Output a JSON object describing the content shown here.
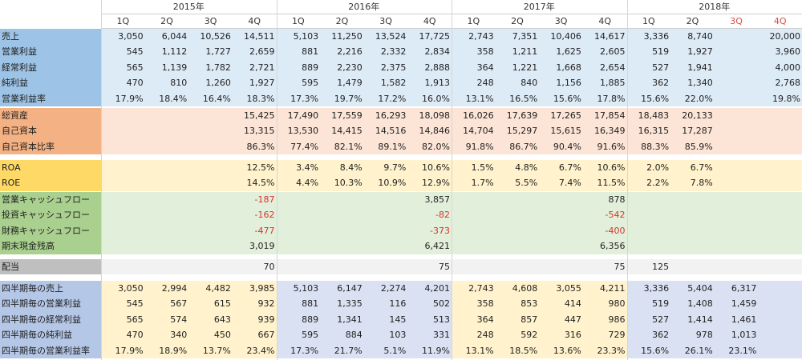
{
  "colors": {
    "label_blue": "#9dc3e6",
    "label_orange": "#f4b183",
    "label_yellow": "#ffd966",
    "label_green": "#a9d08e",
    "label_gray": "#bfbfbf",
    "label_periwinkle": "#b4c7e7",
    "data_blue": "#ddebf7",
    "data_peach": "#fce4d6",
    "data_yellow": "#fff2cc",
    "data_green": "#e2efda",
    "data_gray": "#f2f2f2",
    "data_lavender": "#dae1f3",
    "negative": "#d9342b",
    "header_forecast": "#e04a3f"
  },
  "years": [
    "2015年",
    "2016年",
    "2017年",
    "2018年"
  ],
  "quarters": [
    {
      "label": "1Q",
      "forecast": false
    },
    {
      "label": "2Q",
      "forecast": false
    },
    {
      "label": "3Q",
      "forecast": false
    },
    {
      "label": "4Q",
      "forecast": false
    },
    {
      "label": "1Q",
      "forecast": false
    },
    {
      "label": "2Q",
      "forecast": false
    },
    {
      "label": "3Q",
      "forecast": false
    },
    {
      "label": "4Q",
      "forecast": false
    },
    {
      "label": "1Q",
      "forecast": false
    },
    {
      "label": "2Q",
      "forecast": false
    },
    {
      "label": "3Q",
      "forecast": false
    },
    {
      "label": "4Q",
      "forecast": false
    },
    {
      "label": "1Q",
      "forecast": false
    },
    {
      "label": "2Q",
      "forecast": false
    },
    {
      "label": "3Q",
      "forecast": true
    },
    {
      "label": "4Q",
      "forecast": true
    }
  ],
  "sections": [
    {
      "id": "earnings",
      "label_color": "label_blue",
      "fill": "uniform",
      "data_color": "data_blue",
      "rows": [
        {
          "label": "売上",
          "values": [
            "3,050",
            "6,044",
            "10,526",
            "14,511",
            "5,103",
            "11,250",
            "13,524",
            "17,725",
            "2,743",
            "7,351",
            "10,406",
            "14,617",
            "3,336",
            "8,740",
            "",
            "20,000"
          ]
        },
        {
          "label": "営業利益",
          "values": [
            "545",
            "1,112",
            "1,727",
            "2,659",
            "881",
            "2,216",
            "2,332",
            "2,834",
            "358",
            "1,211",
            "1,625",
            "2,605",
            "519",
            "1,927",
            "",
            "3,960"
          ]
        },
        {
          "label": "経常利益",
          "values": [
            "565",
            "1,139",
            "1,782",
            "2,721",
            "889",
            "2,230",
            "2,375",
            "2,888",
            "364",
            "1,221",
            "1,668",
            "2,654",
            "527",
            "1,941",
            "",
            "4,000"
          ]
        },
        {
          "label": "純利益",
          "values": [
            "470",
            "810",
            "1,260",
            "1,927",
            "595",
            "1,479",
            "1,582",
            "1,913",
            "248",
            "840",
            "1,156",
            "1,885",
            "362",
            "1,340",
            "",
            "2,768"
          ]
        },
        {
          "label": "営業利益率",
          "values": [
            "17.9%",
            "18.4%",
            "16.4%",
            "18.3%",
            "17.3%",
            "19.7%",
            "17.2%",
            "16.0%",
            "13.1%",
            "16.5%",
            "15.6%",
            "17.8%",
            "15.6%",
            "22.0%",
            "",
            "19.8%"
          ]
        }
      ]
    },
    {
      "id": "balance",
      "label_color": "label_orange",
      "fill": "uniform",
      "data_color": "data_peach",
      "rows": [
        {
          "label": "総資産",
          "values": [
            "",
            "",
            "",
            "15,425",
            "17,490",
            "17,559",
            "16,293",
            "18,098",
            "16,026",
            "17,639",
            "17,265",
            "17,854",
            "18,483",
            "20,133",
            "",
            ""
          ]
        },
        {
          "label": "自己資本",
          "values": [
            "",
            "",
            "",
            "13,315",
            "13,530",
            "14,415",
            "14,516",
            "14,846",
            "14,704",
            "15,297",
            "15,615",
            "16,349",
            "16,315",
            "17,287",
            "",
            ""
          ]
        },
        {
          "label": "自己資本比率",
          "values": [
            "",
            "",
            "",
            "86.3%",
            "77.4%",
            "82.1%",
            "89.1%",
            "82.0%",
            "91.8%",
            "86.7%",
            "90.4%",
            "91.6%",
            "88.3%",
            "85.9%",
            "",
            ""
          ]
        }
      ]
    },
    {
      "id": "returns",
      "label_color": "label_yellow",
      "fill": "uniform",
      "data_color": "data_yellow",
      "rows": [
        {
          "label": "ROA",
          "values": [
            "",
            "",
            "",
            "12.5%",
            "3.4%",
            "8.4%",
            "9.7%",
            "10.6%",
            "1.5%",
            "4.8%",
            "6.7%",
            "10.6%",
            "2.0%",
            "6.7%",
            "",
            ""
          ]
        },
        {
          "label": "ROE",
          "values": [
            "",
            "",
            "",
            "14.5%",
            "4.4%",
            "10.3%",
            "10.9%",
            "12.9%",
            "1.7%",
            "5.5%",
            "7.4%",
            "11.5%",
            "2.2%",
            "7.8%",
            "",
            ""
          ]
        }
      ]
    },
    {
      "id": "cashflow",
      "label_color": "label_green",
      "fill": "uniform",
      "data_color": "data_green",
      "rows": [
        {
          "label": "営業キャッシュフロー",
          "values": [
            "",
            "",
            "",
            "-187",
            "",
            "",
            "",
            "3,857",
            "",
            "",
            "",
            "878",
            "",
            "",
            "",
            ""
          ]
        },
        {
          "label": "投資キャッシュフロー",
          "values": [
            "",
            "",
            "",
            "-162",
            "",
            "",
            "",
            "-82",
            "",
            "",
            "",
            "-542",
            "",
            "",
            "",
            ""
          ]
        },
        {
          "label": "財務キャッシュフロー",
          "values": [
            "",
            "",
            "",
            "-477",
            "",
            "",
            "",
            "-373",
            "",
            "",
            "",
            "-400",
            "",
            "",
            "",
            ""
          ]
        },
        {
          "label": "期末現金残高",
          "values": [
            "",
            "",
            "",
            "3,019",
            "",
            "",
            "",
            "6,421",
            "",
            "",
            "",
            "6,356",
            "",
            "",
            "",
            ""
          ]
        }
      ]
    },
    {
      "id": "dividend",
      "label_color": "label_gray",
      "fill": "uniform",
      "data_color": "data_gray",
      "rows": [
        {
          "label": "配当",
          "values": [
            "",
            "",
            "",
            "70",
            "",
            "",
            "",
            "75",
            "",
            "",
            "",
            "75",
            "125",
            "",
            "",
            ""
          ]
        }
      ]
    },
    {
      "id": "quarterly",
      "label_color": "label_periwinkle",
      "fill": "by_year",
      "year_colors": [
        "data_yellow",
        "data_lavender",
        "data_yellow",
        "data_lavender"
      ],
      "rows": [
        {
          "label": "四半期毎の売上",
          "values": [
            "3,050",
            "2,994",
            "4,482",
            "3,985",
            "5,103",
            "6,147",
            "2,274",
            "4,201",
            "2,743",
            "4,608",
            "3,055",
            "4,211",
            "3,336",
            "5,404",
            "6,317",
            ""
          ]
        },
        {
          "label": "四半期毎の営業利益",
          "values": [
            "545",
            "567",
            "615",
            "932",
            "881",
            "1,335",
            "116",
            "502",
            "358",
            "853",
            "414",
            "980",
            "519",
            "1,408",
            "1,459",
            ""
          ]
        },
        {
          "label": "四半期毎の経常利益",
          "values": [
            "565",
            "574",
            "643",
            "939",
            "889",
            "1,341",
            "145",
            "513",
            "364",
            "857",
            "447",
            "986",
            "527",
            "1,414",
            "1,461",
            ""
          ]
        },
        {
          "label": "四半期毎の純利益",
          "values": [
            "470",
            "340",
            "450",
            "667",
            "595",
            "884",
            "103",
            "331",
            "248",
            "592",
            "316",
            "729",
            "362",
            "978",
            "1,013",
            ""
          ]
        },
        {
          "label": "四半期毎の営業利益率",
          "values": [
            "17.9%",
            "18.9%",
            "13.7%",
            "23.4%",
            "17.3%",
            "21.7%",
            "5.1%",
            "11.9%",
            "13.1%",
            "18.5%",
            "13.6%",
            "23.3%",
            "15.6%",
            "26.1%",
            "23.1%",
            ""
          ]
        }
      ]
    }
  ]
}
